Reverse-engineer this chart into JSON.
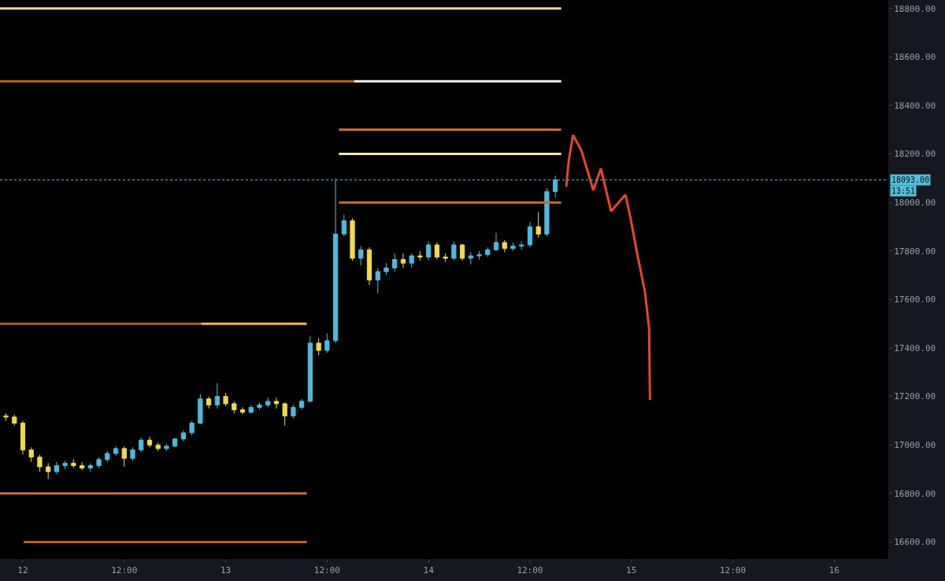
{
  "chart_data": {
    "type": "candlestick",
    "xlim": [
      "--12-11T21:18",
      "--12-16T06:24"
    ],
    "xticks": [
      {
        "value": "--12-12",
        "label": "12"
      },
      {
        "value": "--12-12T12:00",
        "label": "12:00"
      },
      {
        "value": "--12-13",
        "label": "13"
      },
      {
        "value": "--12-13T12:00",
        "label": "12:00"
      },
      {
        "value": "--12-14",
        "label": "14"
      },
      {
        "value": "--12-14T12:00",
        "label": "12:00"
      },
      {
        "value": "--12-15",
        "label": "15"
      },
      {
        "value": "--12-15T12:00",
        "label": "12:00"
      },
      {
        "value": "--12-16",
        "label": "16"
      }
    ],
    "ylim": [
      16530,
      18835
    ],
    "yticks": [
      {
        "value": 16600,
        "label": "16600.00"
      },
      {
        "value": 16800,
        "label": "16800.00"
      },
      {
        "value": 17000,
        "label": "17000.00"
      },
      {
        "value": 17200,
        "label": "17200.00"
      },
      {
        "value": 17400,
        "label": "17400.00"
      },
      {
        "value": 17600,
        "label": "17600.00"
      },
      {
        "value": 17800,
        "label": "17800.00"
      },
      {
        "value": 18000,
        "label": "18000.00"
      },
      {
        "value": 18200,
        "label": "18200.00"
      },
      {
        "value": 18400,
        "label": "18400.00"
      },
      {
        "value": 18600,
        "label": "18600.00"
      },
      {
        "value": 18800,
        "label": "18800.00"
      }
    ],
    "ref_lines": [
      {
        "axis": "y",
        "value": 18093,
        "label": "18093.00",
        "color": "#4fc0dc",
        "line_style": "dotted"
      }
    ],
    "annotations": [
      "13:51"
    ],
    "series": [
      {
        "type": "line",
        "color": "#f2dc82",
        "x": [
          "--12-11T21:18",
          "--12-14T15:42"
        ],
        "values": [
          18800,
          18800
        ]
      },
      {
        "type": "line",
        "color": "#b5622a",
        "x": [
          "--12-11T21:18",
          "--12-13T15:12"
        ],
        "values": [
          18500,
          18500
        ]
      },
      {
        "type": "line",
        "color": "#f4f1ea",
        "x": [
          "--12-13T15:12",
          "--12-14T15:42"
        ],
        "values": [
          18500,
          18500
        ]
      },
      {
        "type": "line",
        "color": "#c9733a",
        "x": [
          "--12-13T13:24",
          "--12-14T15:42"
        ],
        "values": [
          18300,
          18300
        ]
      },
      {
        "type": "line",
        "color": "#f7e6b8",
        "x": [
          "--12-13T13:24",
          "--12-14T15:42"
        ],
        "values": [
          18200,
          18200
        ]
      },
      {
        "type": "line",
        "color": "#c8692e",
        "x": [
          "--12-13T13:24",
          "--12-14T15:42"
        ],
        "values": [
          18000,
          18000
        ]
      },
      {
        "type": "line",
        "color": "#a85a28",
        "x": [
          "--12-11T21:18",
          "--12-12T21:06"
        ],
        "values": [
          17500,
          17500
        ]
      },
      {
        "type": "line",
        "color": "#f0b45a",
        "x": [
          "--12-12T21:06",
          "--12-13T09:36"
        ],
        "values": [
          17500,
          17500
        ]
      },
      {
        "type": "line",
        "color": "#c87038",
        "x": [
          "--12-11T21:18",
          "--12-13T09:36"
        ],
        "values": [
          16800,
          16800
        ]
      },
      {
        "type": "line",
        "color": "#b8602c",
        "x": [
          "--12-12T00:06",
          "--12-13T09:36"
        ],
        "values": [
          16600,
          16600
        ]
      },
      {
        "type": "line",
        "color": "#e8432b",
        "x": [
          "--12-14T16:18",
          "--12-14T16:36",
          "--12-14T17:06",
          "--12-14T18:06",
          "--12-14T19:30",
          "--12-14T20:24",
          "--12-14T21:36",
          "--12-14T23:18",
          "--12-14T23:54",
          "--12-15T00:42",
          "--12-15T01:36",
          "--12-15T02:06",
          "--12-15T02:12"
        ],
        "values": [
          18065,
          18175,
          18278,
          18213,
          18051,
          18140,
          17964,
          18032,
          17937,
          17786,
          17634,
          17482,
          17185
        ]
      },
      {
        "x": [
          "--12-11T22:00",
          "--12-11T23:00",
          "--12-12T00:00",
          "--12-12T01:00",
          "--12-12T02:00",
          "--12-12T03:00",
          "--12-12T04:00",
          "--12-12T05:00",
          "--12-12T06:00",
          "--12-12T07:00",
          "--12-12T08:00",
          "--12-12T09:00",
          "--12-12T10:00",
          "--12-12T11:00",
          "--12-12T12:00",
          "--12-12T13:00",
          "--12-12T14:00",
          "--12-12T15:00",
          "--12-12T16:00",
          "--12-12T17:00",
          "--12-12T18:00",
          "--12-12T19:00",
          "--12-12T20:00",
          "--12-12T21:00",
          "--12-12T22:00",
          "--12-12T23:00",
          "--12-13T00:00",
          "--12-13T01:00",
          "--12-13T02:00",
          "--12-13T03:00",
          "--12-13T04:00",
          "--12-13T05:00",
          "--12-13T06:00",
          "--12-13T07:00",
          "--12-13T08:00",
          "--12-13T09:00",
          "--12-13T10:00",
          "--12-13T11:00",
          "--12-13T12:00",
          "--12-13T13:00",
          "--12-13T14:00",
          "--12-13T15:00",
          "--12-13T16:00",
          "--12-13T17:00",
          "--12-13T18:00",
          "--12-13T19:00",
          "--12-13T20:00",
          "--12-13T21:00",
          "--12-13T22:00",
          "--12-13T23:00",
          "--12-14T00:00",
          "--12-14T01:00",
          "--12-14T02:00",
          "--12-14T03:00",
          "--12-14T04:00",
          "--12-14T05:00",
          "--12-14T06:00",
          "--12-14T07:00",
          "--12-14T08:00",
          "--12-14T09:00",
          "--12-14T10:00",
          "--12-14T11:00",
          "--12-14T12:00",
          "--12-14T13:00",
          "--12-14T14:00",
          "--12-14T15:00"
        ],
        "ohlc": [
          [
            17120,
            17130,
            17100,
            17115
          ],
          [
            17115,
            17125,
            17080,
            17090
          ],
          [
            17090,
            17100,
            16960,
            16980
          ],
          [
            16980,
            16990,
            16930,
            16950
          ],
          [
            16950,
            16960,
            16890,
            16910
          ],
          [
            16910,
            16925,
            16860,
            16890
          ],
          [
            16890,
            16930,
            16880,
            16915
          ],
          [
            16915,
            16935,
            16900,
            16925
          ],
          [
            16925,
            16940,
            16905,
            16915
          ],
          [
            16915,
            16930,
            16895,
            16905
          ],
          [
            16905,
            16925,
            16890,
            16915
          ],
          [
            16915,
            16950,
            16905,
            16940
          ],
          [
            16940,
            16975,
            16930,
            16965
          ],
          [
            16965,
            16995,
            16955,
            16985
          ],
          [
            16985,
            16995,
            16910,
            16945
          ],
          [
            16945,
            16990,
            16935,
            16980
          ],
          [
            16980,
            17030,
            16970,
            17020
          ],
          [
            17020,
            17035,
            16990,
            17000
          ],
          [
            17000,
            17010,
            16975,
            16985
          ],
          [
            16985,
            17005,
            16975,
            16995
          ],
          [
            16995,
            17030,
            16990,
            17025
          ],
          [
            17025,
            17060,
            17015,
            17050
          ],
          [
            17050,
            17100,
            17040,
            17090
          ],
          [
            17090,
            17210,
            17085,
            17190
          ],
          [
            17190,
            17200,
            17150,
            17165
          ],
          [
            17165,
            17255,
            17150,
            17200
          ],
          [
            17200,
            17215,
            17160,
            17170
          ],
          [
            17170,
            17180,
            17130,
            17145
          ],
          [
            17145,
            17155,
            17125,
            17135
          ],
          [
            17135,
            17165,
            17130,
            17155
          ],
          [
            17155,
            17175,
            17145,
            17165
          ],
          [
            17165,
            17195,
            17155,
            17180
          ],
          [
            17180,
            17195,
            17150,
            17170
          ],
          [
            17170,
            17175,
            17080,
            17120
          ],
          [
            17120,
            17165,
            17110,
            17155
          ],
          [
            17155,
            17190,
            17145,
            17180
          ],
          [
            17180,
            17450,
            17175,
            17420
          ],
          [
            17420,
            17440,
            17370,
            17390
          ],
          [
            17390,
            17460,
            17380,
            17430
          ],
          [
            17430,
            18100,
            17420,
            17870
          ],
          [
            17870,
            17950,
            17860,
            17925
          ],
          [
            17925,
            17935,
            17760,
            17770
          ],
          [
            17770,
            17820,
            17740,
            17805
          ],
          [
            17805,
            17815,
            17660,
            17680
          ],
          [
            17680,
            17730,
            17625,
            17715
          ],
          [
            17715,
            17750,
            17700,
            17730
          ],
          [
            17730,
            17790,
            17715,
            17765
          ],
          [
            17765,
            17790,
            17730,
            17750
          ],
          [
            17750,
            17790,
            17730,
            17780
          ],
          [
            17780,
            17800,
            17760,
            17775
          ],
          [
            17775,
            17840,
            17760,
            17825
          ],
          [
            17825,
            17835,
            17765,
            17775
          ],
          [
            17775,
            17790,
            17755,
            17770
          ],
          [
            17770,
            17840,
            17760,
            17825
          ],
          [
            17825,
            17830,
            17760,
            17770
          ],
          [
            17770,
            17795,
            17745,
            17780
          ],
          [
            17780,
            17800,
            17765,
            17785
          ],
          [
            17785,
            17815,
            17775,
            17805
          ],
          [
            17805,
            17875,
            17800,
            17835
          ],
          [
            17835,
            17845,
            17795,
            17810
          ],
          [
            17810,
            17835,
            17800,
            17820
          ],
          [
            17820,
            17840,
            17805,
            17825
          ],
          [
            17825,
            17920,
            17815,
            17900
          ],
          [
            17900,
            17960,
            17855,
            17870
          ],
          [
            17870,
            18060,
            17860,
            18045
          ],
          [
            18045,
            18110,
            18020,
            18093
          ]
        ],
        "colors": [
          "#efd94c",
          "#efd94c",
          "#efd94c",
          "#efd94c",
          "#efd94c",
          "#efd94c",
          "#4cb9dd",
          "#4cb9dd",
          "#efd94c",
          "#efd94c",
          "#4cb9dd",
          "#4cb9dd",
          "#4cb9dd",
          "#4cb9dd",
          "#efd94c",
          "#4cb9dd",
          "#4cb9dd",
          "#efd94c",
          "#efd94c",
          "#4cb9dd",
          "#4cb9dd",
          "#4cb9dd",
          "#4cb9dd",
          "#4cb9dd",
          "#efd94c",
          "#4cb9dd",
          "#efd94c",
          "#efd94c",
          "#efd94c",
          "#4cb9dd",
          "#4cb9dd",
          "#4cb9dd",
          "#efd94c",
          "#efd94c",
          "#4cb9dd",
          "#4cb9dd",
          "#4cb9dd",
          "#efd94c",
          "#4cb9dd",
          "#4cb9dd",
          "#4cb9dd",
          "#efd94c",
          "#4cb9dd",
          "#efd94c",
          "#4cb9dd",
          "#4cb9dd",
          "#4cb9dd",
          "#efd94c",
          "#4cb9dd",
          "#efd94c",
          "#4cb9dd",
          "#efd94c",
          "#efd94c",
          "#4cb9dd",
          "#efd94c",
          "#4cb9dd",
          "#4cb9dd",
          "#4cb9dd",
          "#4cb9dd",
          "#efd94c",
          "#4cb9dd",
          "#4cb9dd",
          "#4cb9dd",
          "#efd94c",
          "#4cb9dd",
          "#4cb9dd"
        ]
      }
    ]
  }
}
